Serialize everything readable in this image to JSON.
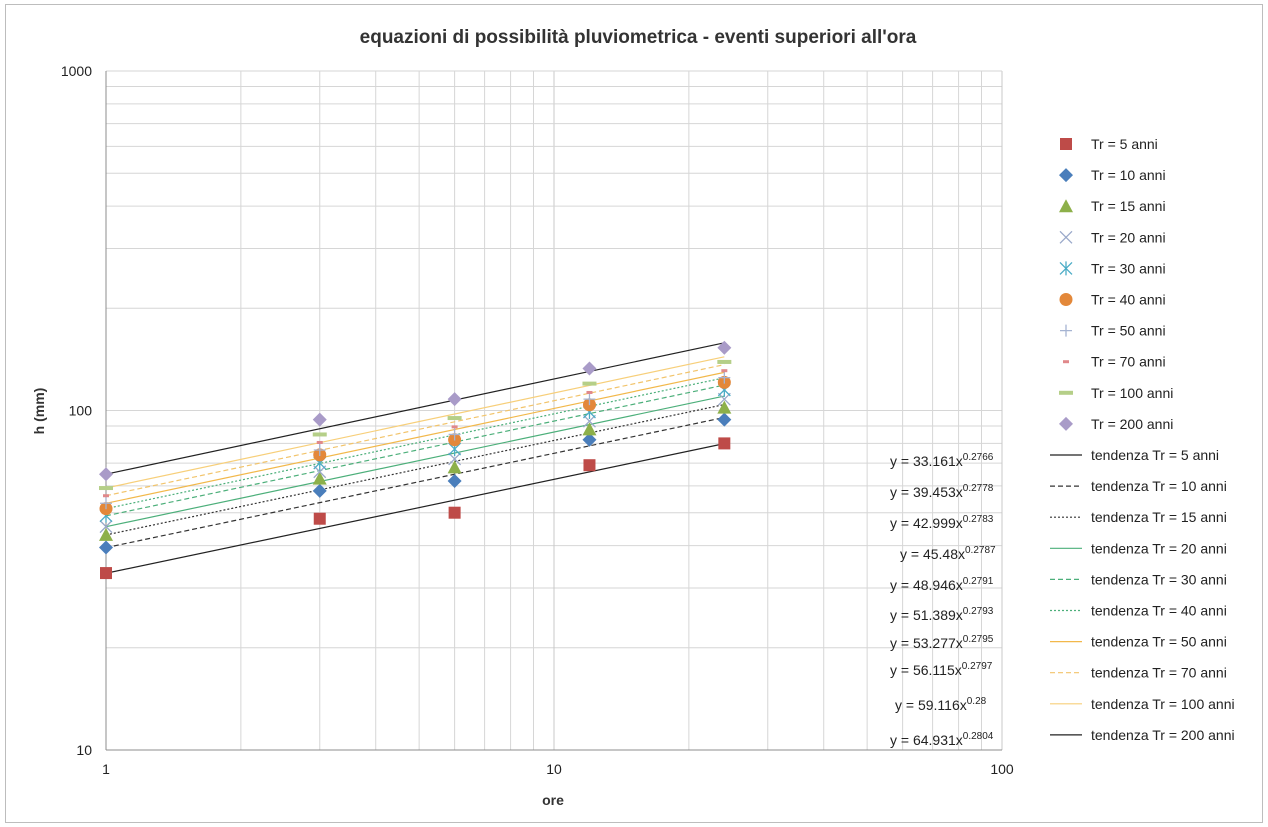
{
  "chart_data": {
    "type": "scatter",
    "title": "equazioni di possibilità pluviometrica - eventi superiori all'ora",
    "xlabel": "ore",
    "ylabel": "h (mm)",
    "x_scale": "log",
    "y_scale": "log",
    "xlim": [
      1,
      100
    ],
    "ylim": [
      10,
      1000
    ],
    "x_ticks": [
      "1",
      "10",
      "100"
    ],
    "y_ticks": [
      "10",
      "100",
      "1000"
    ],
    "grid": true,
    "legend_position": "right",
    "x": [
      1,
      3,
      6,
      12,
      24
    ],
    "series": [
      {
        "name": "Tr = 5 anni",
        "marker": "square",
        "color": "#be4b48",
        "values": [
          33.2,
          48.0,
          50.0,
          69.0,
          80.0
        ]
      },
      {
        "name": "Tr = 10 anni",
        "marker": "diamond",
        "color": "#4a7ebb",
        "values": [
          39.5,
          58.0,
          62.0,
          82.0,
          94.0
        ]
      },
      {
        "name": "Tr = 15 anni",
        "marker": "triangle",
        "color": "#8db04a",
        "values": [
          43.0,
          63.0,
          68.0,
          88.0,
          102.0
        ]
      },
      {
        "name": "Tr = 20 anni",
        "marker": "x",
        "color": "#9aa9c9",
        "values": [
          45.5,
          66.0,
          72.0,
          93.0,
          108.0
        ]
      },
      {
        "name": "Tr = 30 anni",
        "marker": "star",
        "color": "#4bacc6",
        "values": [
          49.0,
          70.0,
          77.0,
          99.0,
          115.0
        ]
      },
      {
        "name": "Tr = 40 anni",
        "marker": "circle",
        "color": "#e3883a",
        "values": [
          51.4,
          74.0,
          82.0,
          104.0,
          121.0
        ]
      },
      {
        "name": "Tr = 50 anni",
        "marker": "plus",
        "color": "#a6b4d2",
        "values": [
          53.3,
          76.5,
          85.0,
          108.0,
          125.0
        ]
      },
      {
        "name": "Tr = 70 anni",
        "marker": "dash",
        "color": "#e0888a",
        "values": [
          56.1,
          80.5,
          89.5,
          113.0,
          131.0
        ]
      },
      {
        "name": "Tr = 100 anni",
        "marker": "bar",
        "color": "#b5cf88",
        "values": [
          59.1,
          85.0,
          95.0,
          120.0,
          139.0
        ]
      },
      {
        "name": "Tr = 200 anni",
        "marker": "diamond",
        "color": "#a99bc8",
        "values": [
          64.9,
          94.0,
          108.0,
          133.0,
          153.0
        ]
      }
    ],
    "trendlines": [
      {
        "name": "tendenza Tr = 5 anni",
        "a": 33.161,
        "n": 0.2766,
        "color": "#222222",
        "dash": "",
        "equation": "y = 33.161x",
        "exponent": "0.2766"
      },
      {
        "name": "tendenza Tr = 10 anni",
        "a": 39.453,
        "n": 0.2778,
        "color": "#333333",
        "dash": "5,3",
        "equation": "y = 39.453x",
        "exponent": "0.2778"
      },
      {
        "name": "tendenza Tr = 15 anni",
        "a": 42.999,
        "n": 0.2783,
        "color": "#333333",
        "dash": "2,2",
        "equation": "y = 42.999x",
        "exponent": "0.2783"
      },
      {
        "name": "tendenza Tr = 20 anni",
        "a": 45.48,
        "n": 0.2787,
        "color": "#4caf7a",
        "dash": "",
        "equation": "y = 45.48x",
        "exponent": "0.2787"
      },
      {
        "name": "tendenza Tr = 30 anni",
        "a": 48.946,
        "n": 0.2791,
        "color": "#4caf7a",
        "dash": "5,3",
        "equation": "y = 48.946x",
        "exponent": "0.2791"
      },
      {
        "name": "tendenza Tr = 40 anni",
        "a": 51.389,
        "n": 0.2793,
        "color": "#4caf7a",
        "dash": "2,2",
        "equation": "y = 51.389x",
        "exponent": "0.2793"
      },
      {
        "name": "tendenza Tr = 50 anni",
        "a": 53.277,
        "n": 0.2795,
        "color": "#f2b84b",
        "dash": "",
        "equation": "y = 53.277x",
        "exponent": "0.2795"
      },
      {
        "name": "tendenza Tr = 70 anni",
        "a": 56.115,
        "n": 0.2797,
        "color": "#f2c46b",
        "dash": "5,3",
        "equation": "y = 56.115x",
        "exponent": "0.2797"
      },
      {
        "name": "tendenza Tr = 100 anni",
        "a": 59.116,
        "n": 0.28,
        "color": "#f7cf7a",
        "dash": "",
        "equation": "y = 59.116x",
        "exponent": "0.28"
      },
      {
        "name": "tendenza Tr = 200 anni",
        "a": 64.931,
        "n": 0.2804,
        "color": "#222222",
        "dash": "",
        "equation": "y = 64.931x",
        "exponent": "0.2804"
      }
    ]
  }
}
